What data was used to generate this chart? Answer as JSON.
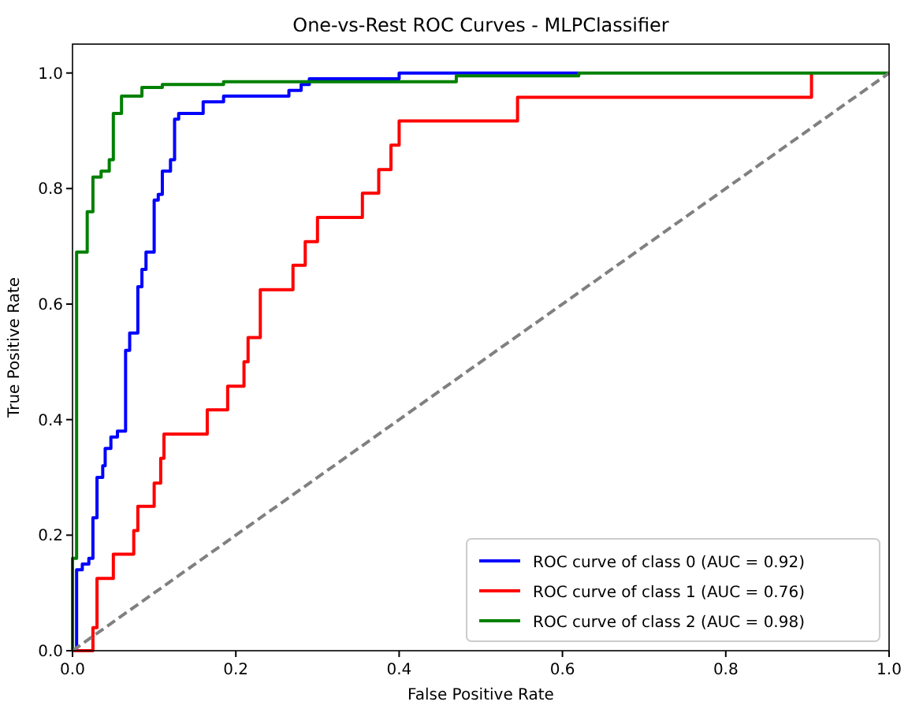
{
  "chart_data": {
    "type": "line",
    "title": "One-vs-Rest ROC Curves - MLPClassifier",
    "xlabel": "False Positive Rate",
    "ylabel": "True Positive Rate",
    "xlim": [
      0,
      1
    ],
    "ylim": [
      0,
      1.05
    ],
    "xticks": [
      {
        "value": 0,
        "label": "0.0"
      },
      {
        "value": 0.2,
        "label": "0.2"
      },
      {
        "value": 0.4,
        "label": "0.4"
      },
      {
        "value": 0.6,
        "label": "0.6"
      },
      {
        "value": 0.8,
        "label": "0.8"
      },
      {
        "value": 1,
        "label": "1.0"
      }
    ],
    "yticks": [
      {
        "value": 0,
        "label": "0.0"
      },
      {
        "value": 0.2,
        "label": "0.2"
      },
      {
        "value": 0.4,
        "label": "0.4"
      },
      {
        "value": 0.6,
        "label": "0.6"
      },
      {
        "value": 0.8,
        "label": "0.8"
      },
      {
        "value": 1,
        "label": "1.0"
      }
    ],
    "legend": "bottom right",
    "grid": false,
    "marker": "none",
    "series": [
      {
        "name": "ROC curve of class 0 (AUC = 0.92)",
        "color": "#0000ff",
        "line_style": "solid",
        "x": [
          0,
          0.005,
          0.005,
          0.012,
          0.012,
          0.02,
          0.02,
          0.025,
          0.025,
          0.03,
          0.03,
          0.037,
          0.037,
          0.04,
          0.04,
          0.047,
          0.047,
          0.055,
          0.055,
          0.065,
          0.065,
          0.07,
          0.07,
          0.08,
          0.08,
          0.085,
          0.085,
          0.09,
          0.09,
          0.1,
          0.1,
          0.105,
          0.105,
          0.11,
          0.11,
          0.12,
          0.12,
          0.125,
          0.125,
          0.13,
          0.13,
          0.16,
          0.16,
          0.185,
          0.185,
          0.265,
          0.265,
          0.28,
          0.28,
          0.29,
          0.29,
          0.4,
          0.4,
          0.62
        ],
        "values": [
          0,
          0,
          0.14,
          0.14,
          0.15,
          0.15,
          0.16,
          0.16,
          0.23,
          0.23,
          0.3,
          0.3,
          0.32,
          0.32,
          0.35,
          0.35,
          0.37,
          0.37,
          0.38,
          0.38,
          0.52,
          0.52,
          0.55,
          0.55,
          0.63,
          0.63,
          0.66,
          0.66,
          0.69,
          0.69,
          0.78,
          0.78,
          0.79,
          0.79,
          0.83,
          0.83,
          0.85,
          0.85,
          0.92,
          0.92,
          0.93,
          0.93,
          0.95,
          0.95,
          0.96,
          0.96,
          0.97,
          0.97,
          0.98,
          0.98,
          0.99,
          0.99,
          1,
          1
        ]
      },
      {
        "name": "ROC curve of class 1 (AUC = 0.76)",
        "color": "#ff0000",
        "line_style": "solid",
        "x": [
          0,
          0.025,
          0.025,
          0.03,
          0.03,
          0.05,
          0.05,
          0.075,
          0.075,
          0.08,
          0.08,
          0.1,
          0.1,
          0.108,
          0.108,
          0.112,
          0.112,
          0.165,
          0.165,
          0.19,
          0.19,
          0.21,
          0.21,
          0.215,
          0.215,
          0.23,
          0.23,
          0.27,
          0.27,
          0.285,
          0.285,
          0.3,
          0.3,
          0.355,
          0.355,
          0.375,
          0.375,
          0.39,
          0.39,
          0.4,
          0.4,
          0.545,
          0.545,
          0.905,
          0.905
        ],
        "values": [
          0,
          0,
          0.04,
          0.04,
          0.125,
          0.125,
          0.167,
          0.167,
          0.208,
          0.208,
          0.25,
          0.25,
          0.29,
          0.29,
          0.333,
          0.333,
          0.375,
          0.375,
          0.417,
          0.417,
          0.458,
          0.458,
          0.5,
          0.5,
          0.542,
          0.542,
          0.625,
          0.625,
          0.667,
          0.667,
          0.708,
          0.708,
          0.75,
          0.75,
          0.792,
          0.792,
          0.833,
          0.833,
          0.875,
          0.875,
          0.917,
          0.917,
          0.958,
          0.958,
          1
        ]
      },
      {
        "name": "ROC curve of class 2 (AUC = 0.98)",
        "color": "#008000",
        "line_style": "solid",
        "x": [
          0,
          0,
          0.005,
          0.005,
          0.018,
          0.018,
          0.025,
          0.025,
          0.035,
          0.035,
          0.045,
          0.045,
          0.05,
          0.05,
          0.06,
          0.06,
          0.085,
          0.085,
          0.11,
          0.11,
          0.185,
          0.185,
          0.47,
          0.47,
          0.62,
          0.62,
          1
        ],
        "values": [
          0,
          0.16,
          0.16,
          0.69,
          0.69,
          0.76,
          0.76,
          0.82,
          0.82,
          0.83,
          0.83,
          0.85,
          0.85,
          0.93,
          0.93,
          0.96,
          0.96,
          0.975,
          0.975,
          0.98,
          0.98,
          0.985,
          0.985,
          0.995,
          0.995,
          1,
          1
        ]
      },
      {
        "color": "#808080",
        "line_style": "dashed",
        "x": [
          0,
          1
        ],
        "values": [
          0,
          1
        ]
      }
    ]
  }
}
